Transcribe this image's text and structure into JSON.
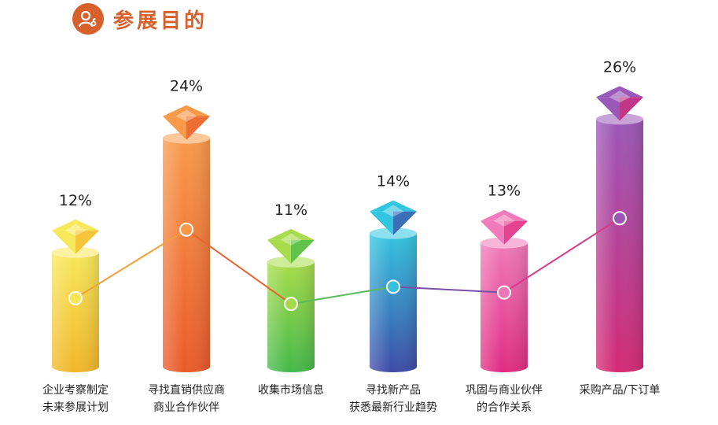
{
  "header": {
    "title": "参展目的",
    "icon": "person-key-icon",
    "color": "#d8612b"
  },
  "chart_data": {
    "type": "bar",
    "style": "3d-cylinder-with-line",
    "title": "参展目的",
    "xlabel": "",
    "ylabel": "",
    "ylim": [
      0,
      30
    ],
    "grid": false,
    "categories": [
      [
        "企业考察制定",
        "未来参展计划"
      ],
      [
        "寻找直销供应商",
        "商业合作伙伴"
      ],
      [
        "收集市场信息"
      ],
      [
        "寻找新产品",
        "获悉最新行业趋势"
      ],
      [
        "巩固与商业伙伴",
        "的合作关系"
      ],
      [
        "采购产品/下订单"
      ]
    ],
    "values": [
      12,
      24,
      11,
      14,
      13,
      26
    ],
    "value_labels": [
      "12%",
      "24%",
      "11%",
      "14%",
      "13%",
      "26%"
    ],
    "colors": [
      [
        "#f7e85a",
        "#f2b629"
      ],
      [
        "#f89a4a",
        "#ea5a2a"
      ],
      [
        "#a8dc4a",
        "#44b84a"
      ],
      [
        "#33c6e0",
        "#3e4aa6"
      ],
      [
        "#f07aba",
        "#e02c82"
      ],
      [
        "#9a58b8",
        "#d42a74"
      ]
    ]
  }
}
